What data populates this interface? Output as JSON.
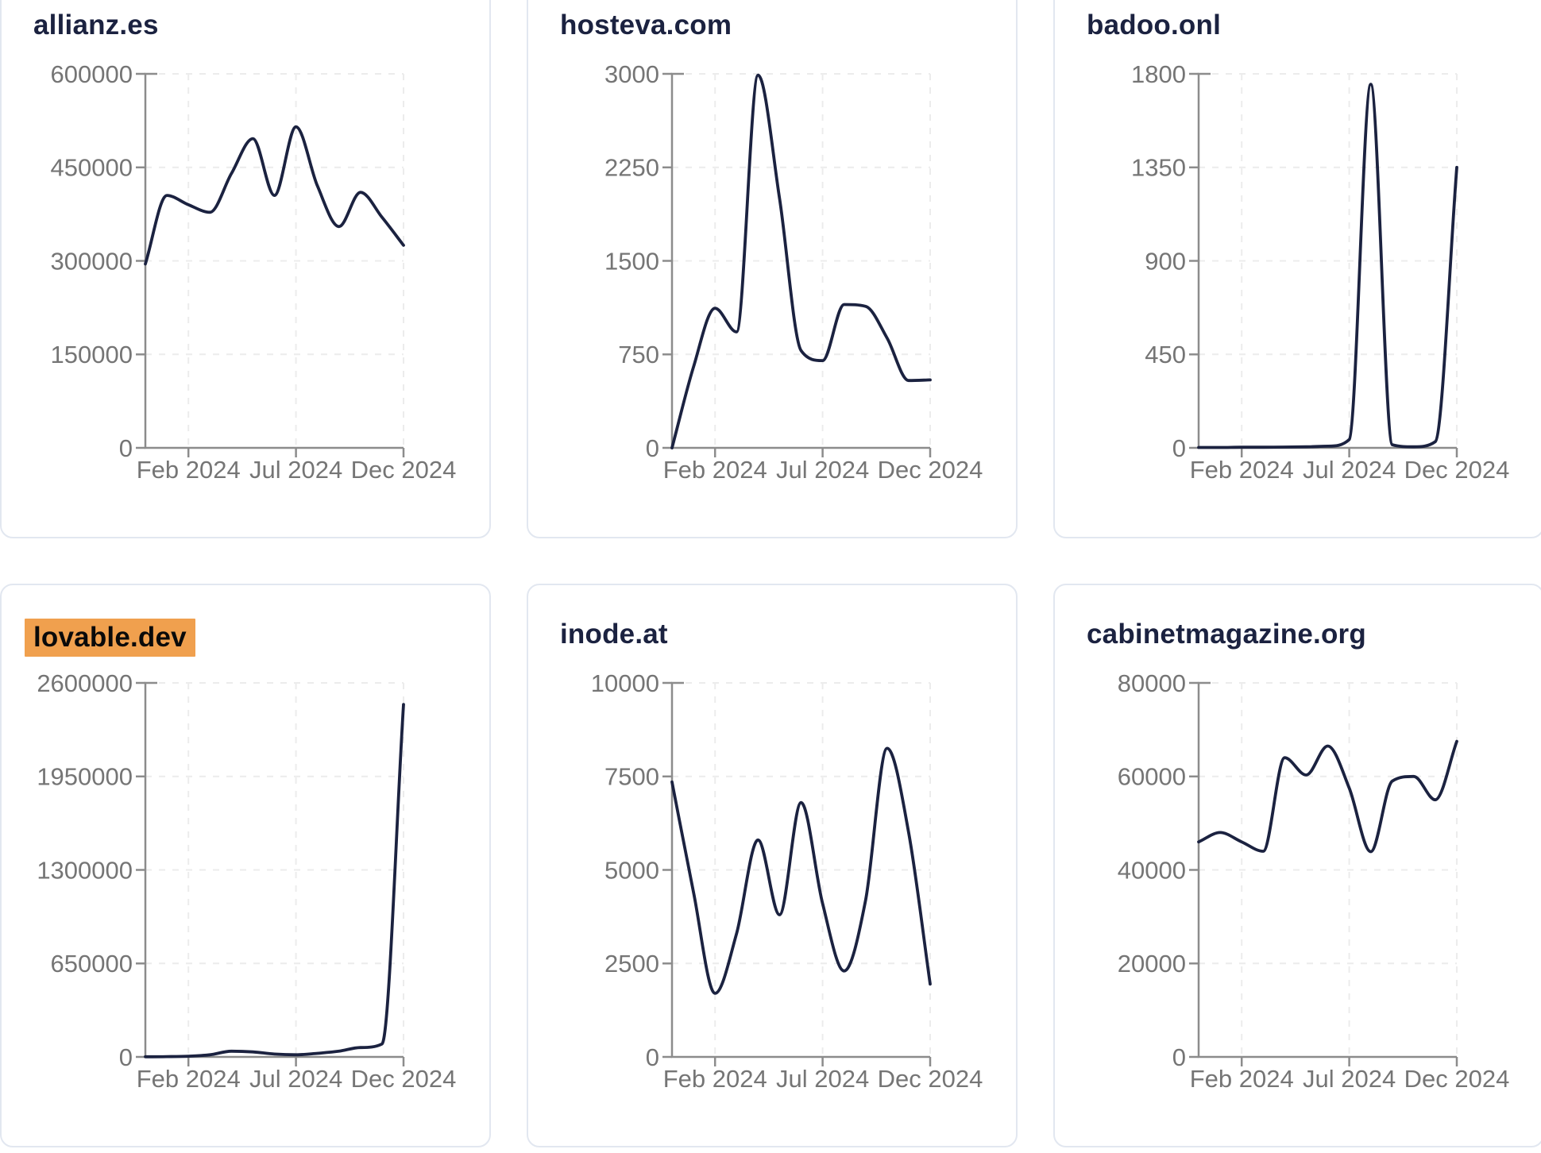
{
  "style": {
    "page_background": "#ffffff",
    "card_background": "#ffffff",
    "card_border_color": "#e2e7f0",
    "title_color": "#1b2240",
    "line_color": "#1b2240",
    "axis_color": "#8c8c8c",
    "tick_label_color": "#757575",
    "grid_color": "#ececec",
    "highlight_background": "#f0a04e",
    "highlight_text_color": "#0a0a0a"
  },
  "chart_data": [
    {
      "type": "line",
      "title": "allianz.es",
      "title_highlighted": false,
      "x": [
        "Dec 2023",
        "Jan 2024",
        "Feb 2024",
        "Mar 2024",
        "Apr 2024",
        "May 2024",
        "Jun 2024",
        "Jul 2024",
        "Aug 2024",
        "Sep 2024",
        "Oct 2024",
        "Nov 2024",
        "Dec 2024"
      ],
      "values": [
        295000,
        405000,
        390000,
        378000,
        440000,
        496000,
        405000,
        515000,
        420000,
        355000,
        410000,
        370000,
        325000
      ],
      "ylim": [
        0,
        600000
      ],
      "y_ticks": [
        0,
        150000,
        300000,
        450000,
        600000
      ],
      "x_ticks": [
        {
          "label": "Feb 2024",
          "index": 2
        },
        {
          "label": "Jul 2024",
          "index": 7
        },
        {
          "label": "Dec 2024",
          "index": 12
        }
      ],
      "grid": true,
      "legend": "none"
    },
    {
      "type": "line",
      "title": "hosteva.com",
      "title_highlighted": false,
      "x": [
        "Dec 2023",
        "Jan 2024",
        "Feb 2024",
        "Mar 2024",
        "Apr 2024",
        "May 2024",
        "Jun 2024",
        "Jul 2024",
        "Aug 2024",
        "Sep 2024",
        "Oct 2024",
        "Nov 2024",
        "Dec 2024"
      ],
      "values": [
        0,
        650,
        1120,
        930,
        2990,
        2000,
        780,
        700,
        1150,
        1135,
        880,
        540,
        545
      ],
      "ylim": [
        0,
        3000
      ],
      "y_ticks": [
        0,
        750,
        1500,
        2250,
        3000
      ],
      "x_ticks": [
        {
          "label": "Feb 2024",
          "index": 2
        },
        {
          "label": "Jul 2024",
          "index": 7
        },
        {
          "label": "Dec 2024",
          "index": 12
        }
      ],
      "grid": true,
      "legend": "none"
    },
    {
      "type": "line",
      "title": "badoo.onl",
      "title_highlighted": false,
      "x": [
        "Dec 2023",
        "Jan 2024",
        "Feb 2024",
        "Mar 2024",
        "Apr 2024",
        "May 2024",
        "Jun 2024",
        "Jul 2024",
        "Aug 2024",
        "Sep 2024",
        "Oct 2024",
        "Nov 2024",
        "Dec 2024"
      ],
      "values": [
        2,
        2,
        3,
        3,
        4,
        5,
        8,
        40,
        1750,
        15,
        5,
        30,
        1350
      ],
      "ylim": [
        0,
        1800
      ],
      "y_ticks": [
        0,
        450,
        900,
        1350,
        1800
      ],
      "x_ticks": [
        {
          "label": "Feb 2024",
          "index": 2
        },
        {
          "label": "Jul 2024",
          "index": 7
        },
        {
          "label": "Dec 2024",
          "index": 12
        }
      ],
      "grid": true,
      "legend": "none"
    },
    {
      "type": "line",
      "title": "lovable.dev",
      "title_highlighted": true,
      "x": [
        "Dec 2023",
        "Jan 2024",
        "Feb 2024",
        "Mar 2024",
        "Apr 2024",
        "May 2024",
        "Jun 2024",
        "Jul 2024",
        "Aug 2024",
        "Sep 2024",
        "Oct 2024",
        "Nov 2024",
        "Dec 2024"
      ],
      "values": [
        1000,
        2000,
        5000,
        15000,
        40000,
        35000,
        20000,
        15000,
        25000,
        40000,
        65000,
        90000,
        2450000
      ],
      "ylim": [
        0,
        2600000
      ],
      "y_ticks": [
        0,
        650000,
        1300000,
        1950000,
        2600000
      ],
      "x_ticks": [
        {
          "label": "Feb 2024",
          "index": 2
        },
        {
          "label": "Jul 2024",
          "index": 7
        },
        {
          "label": "Dec 2024",
          "index": 12
        }
      ],
      "grid": true,
      "legend": "none"
    },
    {
      "type": "line",
      "title": "inode.at",
      "title_highlighted": false,
      "x": [
        "Dec 2023",
        "Jan 2024",
        "Feb 2024",
        "Mar 2024",
        "Apr 2024",
        "May 2024",
        "Jun 2024",
        "Jul 2024",
        "Aug 2024",
        "Sep 2024",
        "Oct 2024",
        "Nov 2024",
        "Dec 2024"
      ],
      "values": [
        7350,
        4400,
        1700,
        3300,
        5800,
        3800,
        6800,
        4100,
        2300,
        4200,
        8250,
        6000,
        1950
      ],
      "ylim": [
        0,
        10000
      ],
      "y_ticks": [
        0,
        2500,
        5000,
        7500,
        10000
      ],
      "x_ticks": [
        {
          "label": "Feb 2024",
          "index": 2
        },
        {
          "label": "Jul 2024",
          "index": 7
        },
        {
          "label": "Dec 2024",
          "index": 12
        }
      ],
      "grid": true,
      "legend": "none"
    },
    {
      "type": "line",
      "title": "cabinetmagazine.org",
      "title_highlighted": false,
      "x": [
        "Dec 2023",
        "Jan 2024",
        "Feb 2024",
        "Mar 2024",
        "Apr 2024",
        "May 2024",
        "Jun 2024",
        "Jul 2024",
        "Aug 2024",
        "Sep 2024",
        "Oct 2024",
        "Nov 2024",
        "Dec 2024"
      ],
      "values": [
        46000,
        48000,
        46000,
        44000,
        64000,
        60300,
        66500,
        57500,
        43900,
        59000,
        60000,
        55000,
        67500
      ],
      "ylim": [
        0,
        80000
      ],
      "y_ticks": [
        0,
        20000,
        40000,
        60000,
        80000
      ],
      "x_ticks": [
        {
          "label": "Feb 2024",
          "index": 2
        },
        {
          "label": "Jul 2024",
          "index": 7
        },
        {
          "label": "Dec 2024",
          "index": 12
        }
      ],
      "grid": true,
      "legend": "none"
    }
  ]
}
